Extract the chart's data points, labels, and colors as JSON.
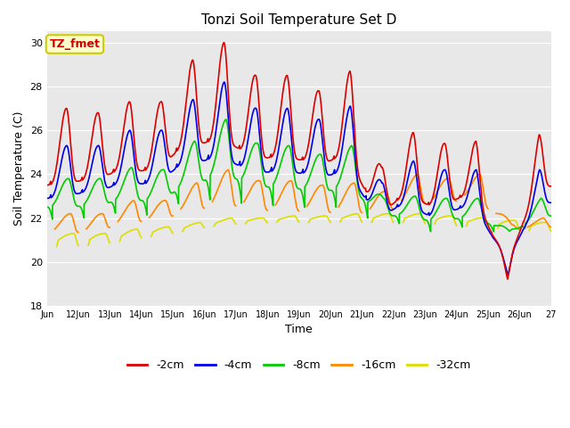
{
  "title": "Tonzi Soil Temperature Set D",
  "xlabel": "Time",
  "ylabel": "Soil Temperature (C)",
  "ylim": [
    18,
    30.5
  ],
  "xlim": [
    0,
    16
  ],
  "plot_bg_color": "#e8e8e8",
  "annotation_text": "TZ_fmet",
  "annotation_bg": "#ffffcc",
  "annotation_border": "#cccc00",
  "series": {
    "neg2cm": {
      "label": "-2cm",
      "color": "#dd0000",
      "lw": 1.2
    },
    "neg4cm": {
      "label": "-4cm",
      "color": "#0000ee",
      "lw": 1.2
    },
    "neg8cm": {
      "label": "-8cm",
      "color": "#00cc00",
      "lw": 1.2
    },
    "neg16cm": {
      "label": "-16cm",
      "color": "#ff8800",
      "lw": 1.2
    },
    "neg32cm": {
      "label": "-32cm",
      "color": "#dddd00",
      "lw": 1.2
    }
  },
  "xtick_labels": [
    "Jun",
    "12Jun",
    "13Jun",
    "14Jun",
    "15Jun",
    "16Jun",
    "17Jun",
    "18Jun",
    "19Jun",
    "20Jun",
    "21Jun",
    "22Jun",
    "23Jun",
    "24Jun",
    "25Jun",
    "26Jun",
    "27"
  ],
  "ytick_values": [
    18,
    20,
    22,
    24,
    26,
    28,
    30
  ]
}
